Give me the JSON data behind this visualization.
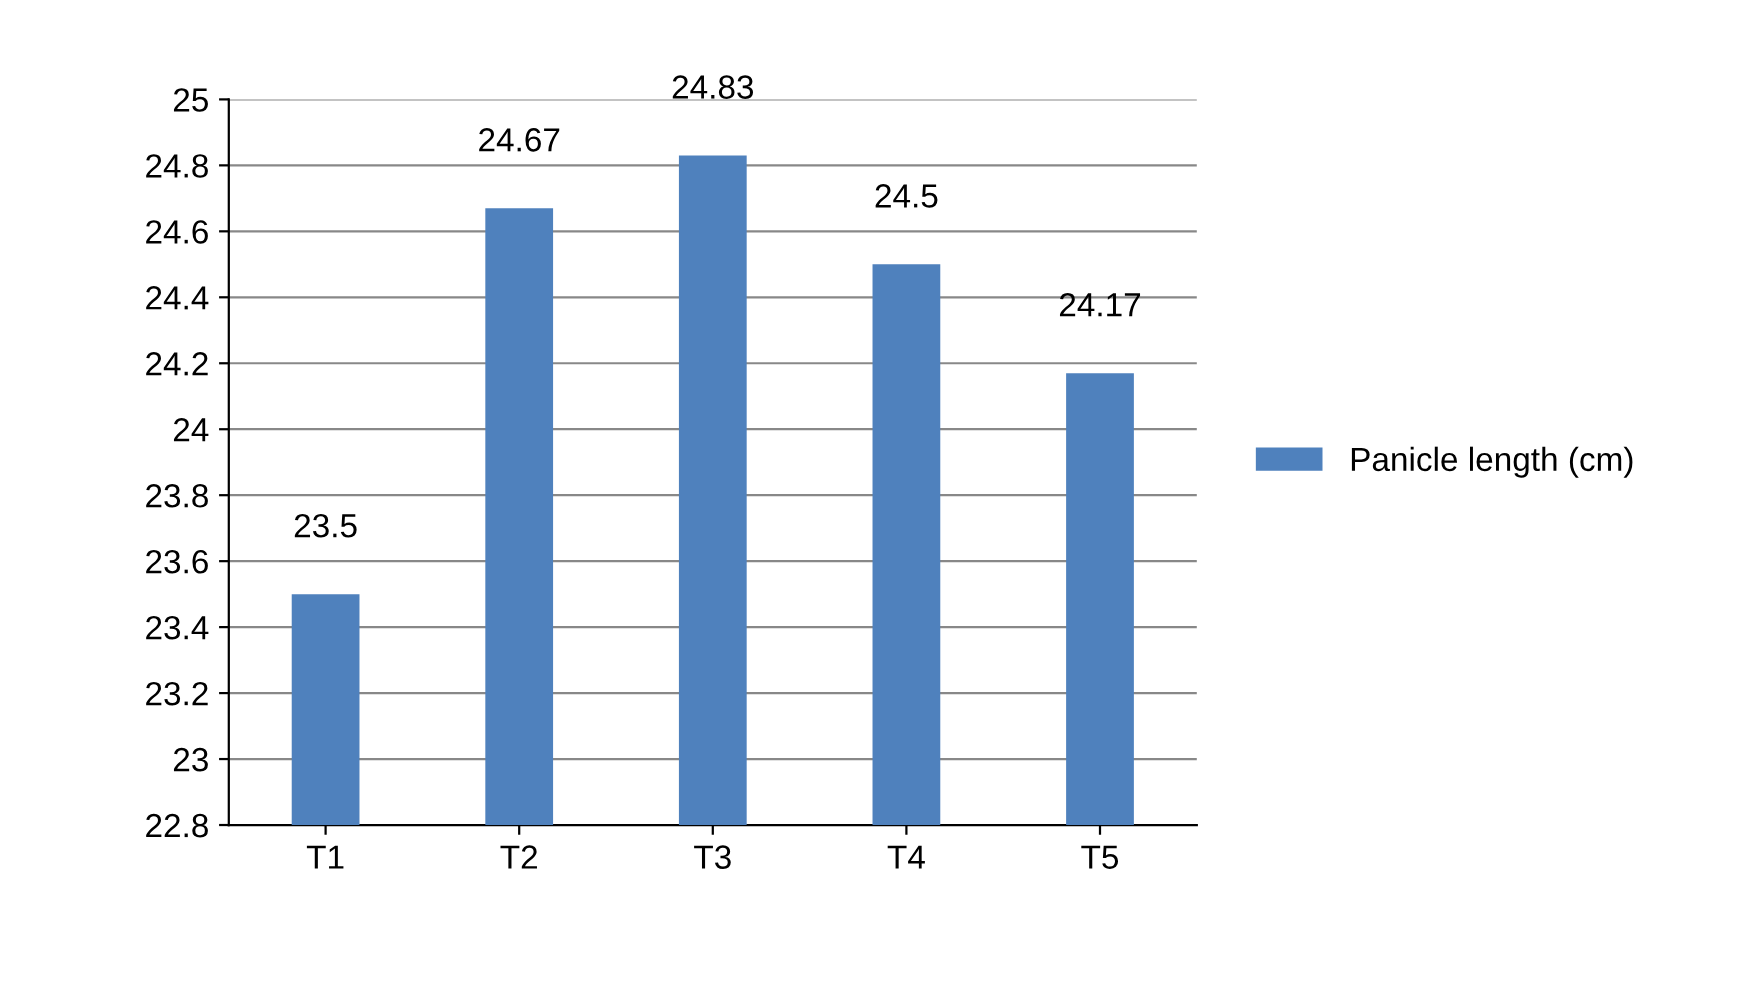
{
  "chart_data": {
    "type": "bar",
    "categories": [
      "T1",
      "T2",
      "T3",
      "T4",
      "T5"
    ],
    "series": [
      {
        "name": "Panicle length (cm)",
        "color": "#4f81bd",
        "values": [
          23.5,
          24.67,
          24.83,
          24.5,
          24.17
        ]
      }
    ],
    "ylim": [
      22.8,
      25
    ],
    "yticks": [
      22.8,
      23,
      23.2,
      23.4,
      23.6,
      23.8,
      24,
      24.2,
      24.4,
      24.6,
      24.8,
      25
    ],
    "grid": "y",
    "legend": "right",
    "data_labels": true
  }
}
